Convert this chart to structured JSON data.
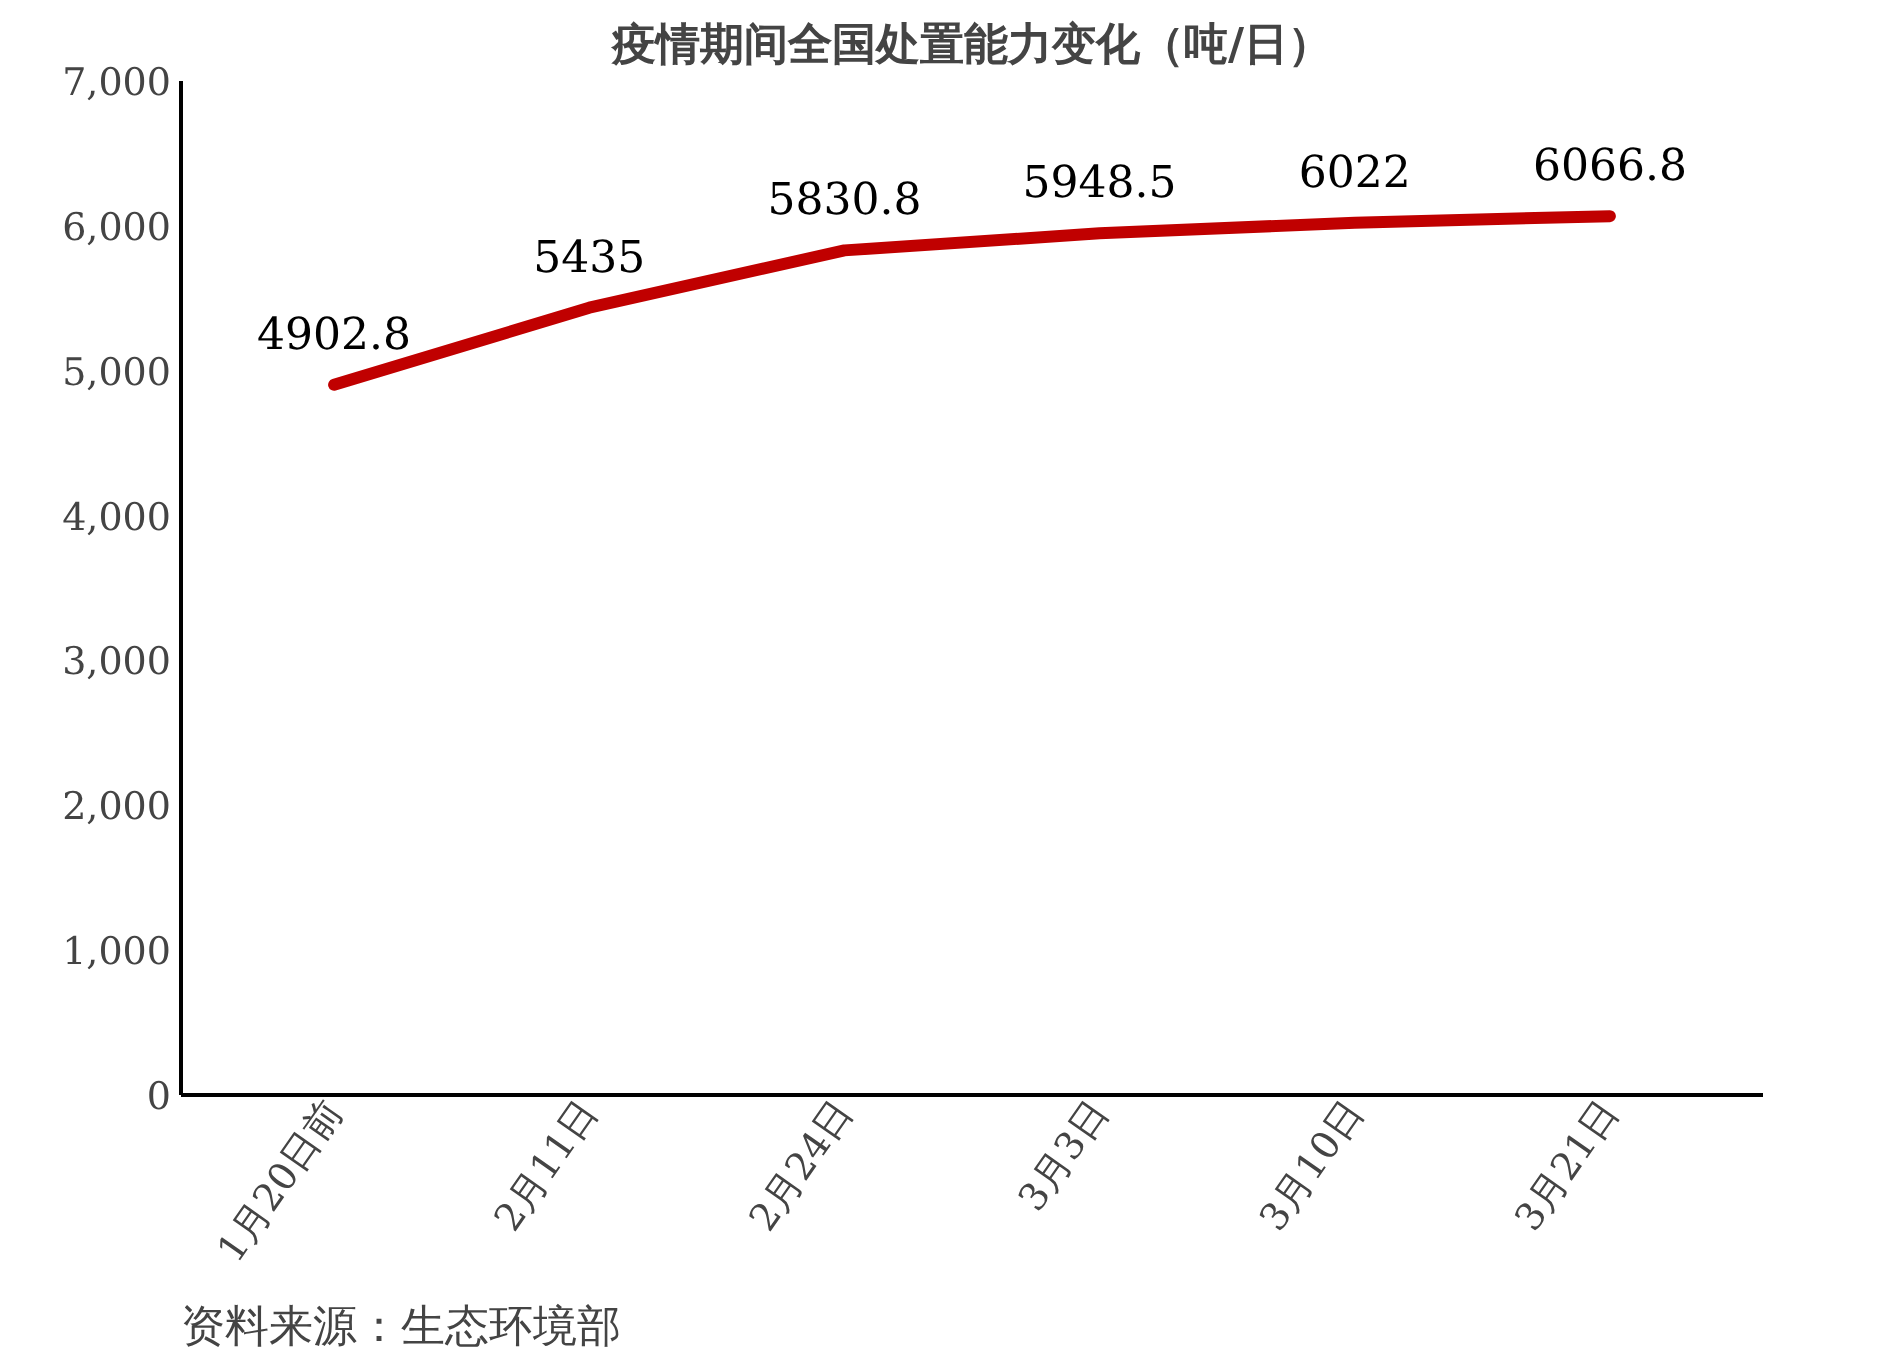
{
  "chart_data": {
    "type": "line",
    "title": "疫情期间全国处置能力变化（吨/日）",
    "categories": [
      "1月20日前",
      "2月11日",
      "2月24日",
      "3月3日",
      "3月10日",
      "3月21日"
    ],
    "series": [
      {
        "color": "#c00000",
        "values": [
          4902.8,
          5435,
          5830.8,
          5948.5,
          6022,
          6066.8
        ]
      }
    ],
    "ylim": [
      0,
      7000
    ],
    "yticks": [
      0,
      {
        "value": 1000,
        "label": "1,000"
      },
      {
        "value": 2000,
        "label": "2,000"
      },
      {
        "value": 3000,
        "label": "3,000"
      },
      {
        "value": 4000,
        "label": "4,000"
      },
      {
        "value": 5000,
        "label": "5,000"
      },
      {
        "value": 6000,
        "label": "6,000"
      },
      {
        "value": 7000,
        "label": "7,000"
      }
    ],
    "grid": false,
    "marker": "none",
    "line_style": "solid",
    "data_labels": true,
    "annotations": [
      "资料来源：生态环境部"
    ]
  }
}
